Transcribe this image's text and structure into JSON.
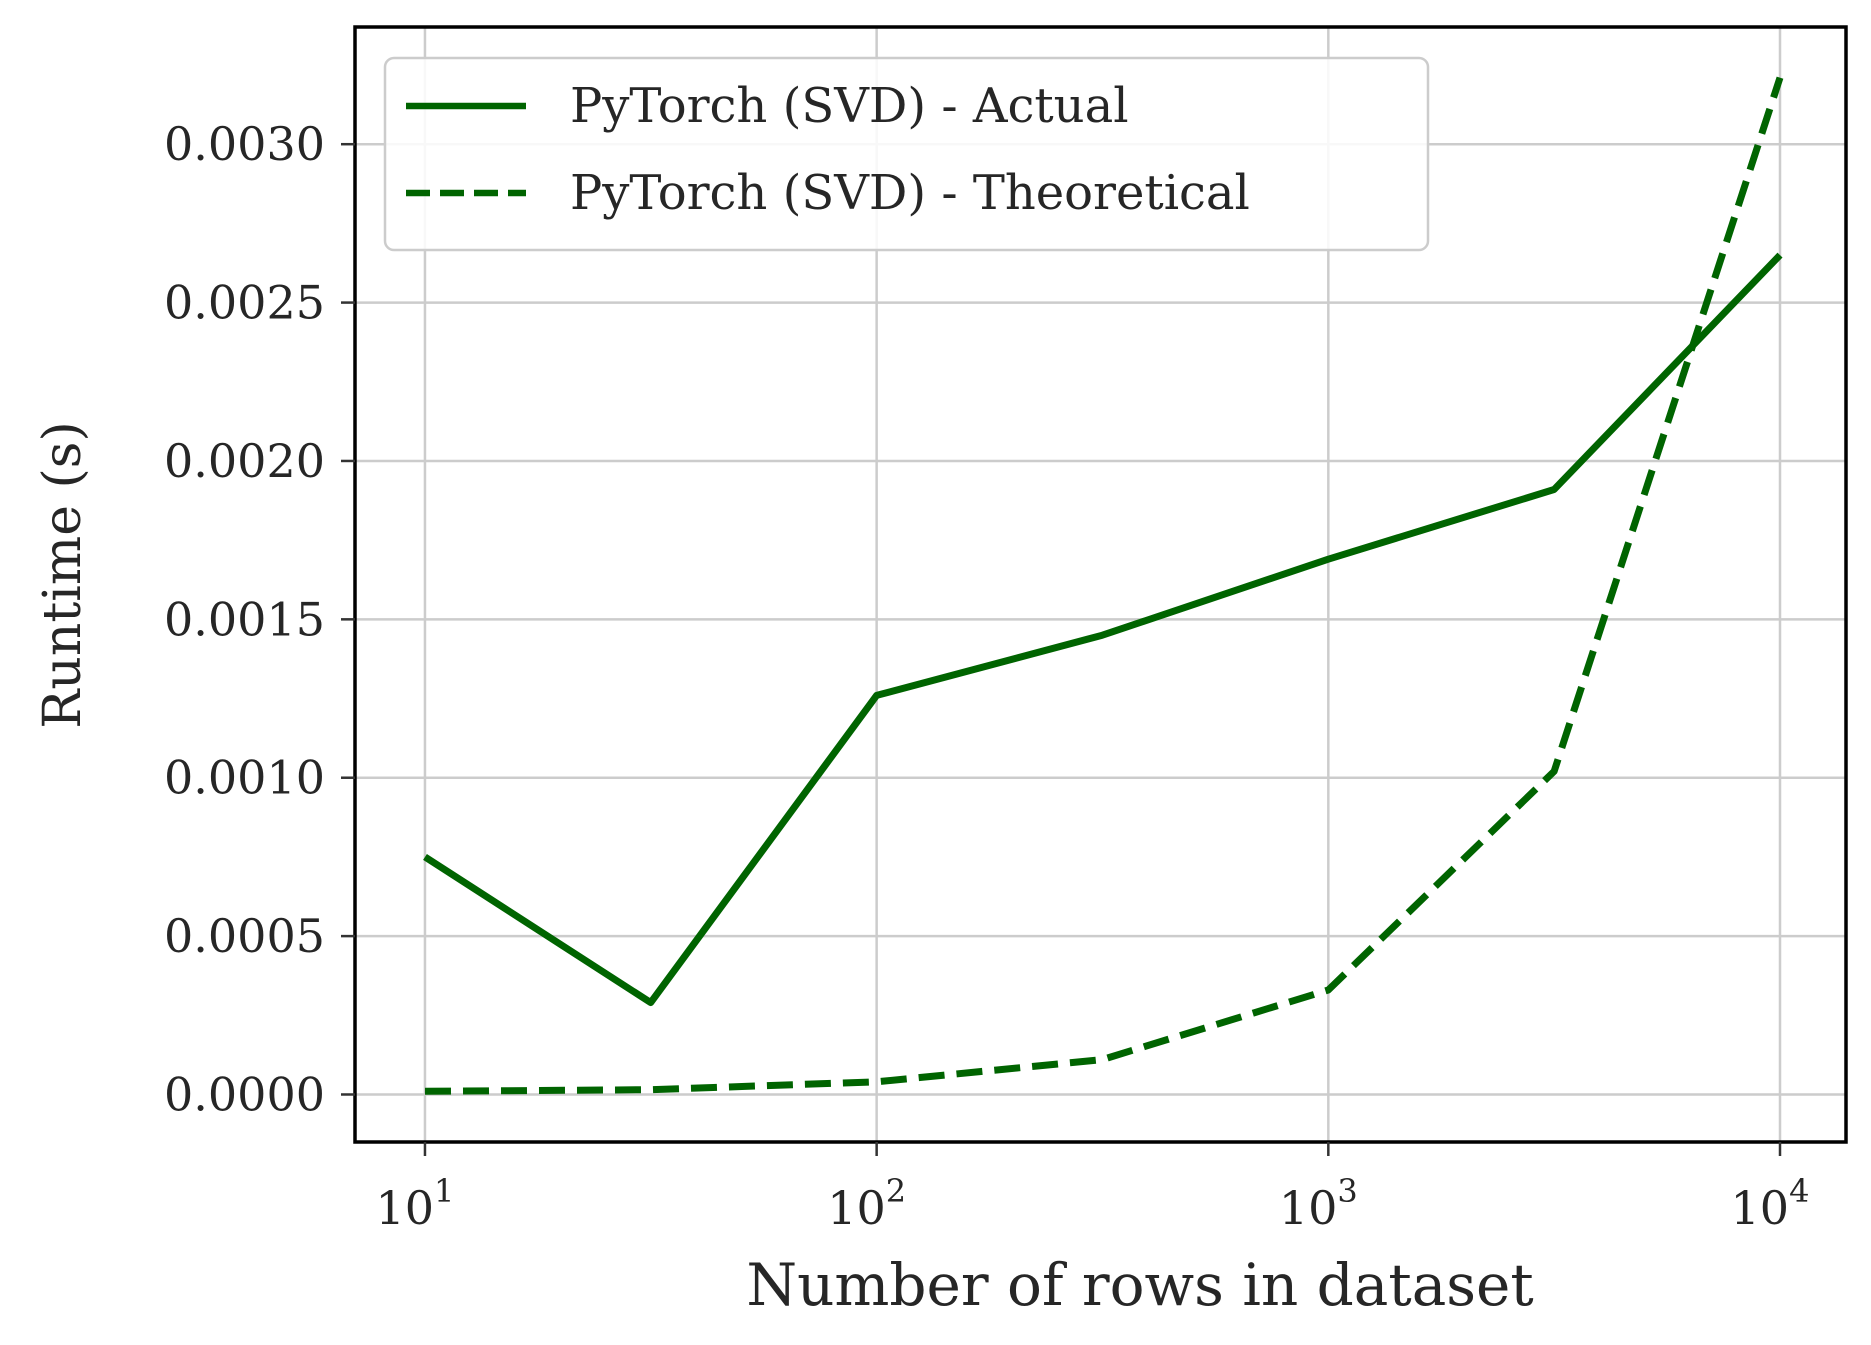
{
  "chart_data": {
    "type": "line",
    "xlabel": "Number of rows in dataset",
    "ylabel": "Runtime (s)",
    "xscale": "log",
    "xlim": [
      7,
      14000
    ],
    "ylim": [
      -0.00015,
      0.00337
    ],
    "grid": true,
    "legend_position": "top-left",
    "x_ticks": [
      10,
      100,
      1000,
      10000
    ],
    "x_tick_labels": [
      {
        "base": "10",
        "exp": "1"
      },
      {
        "base": "10",
        "exp": "2"
      },
      {
        "base": "10",
        "exp": "3"
      },
      {
        "base": "10",
        "exp": "4"
      }
    ],
    "y_ticks": [
      0.0,
      0.0005,
      0.001,
      0.0015,
      0.002,
      0.0025,
      0.003
    ],
    "y_tick_labels": [
      "0.0000",
      "0.0005",
      "0.0010",
      "0.0015",
      "0.0020",
      "0.0025",
      "0.0030"
    ],
    "series": [
      {
        "name": "PyTorch (SVD) - Actual",
        "style": "solid",
        "color": "#006400",
        "x": [
          10,
          31.6,
          100,
          316,
          1000,
          3162,
          10000
        ],
        "y": [
          0.00075,
          0.00029,
          0.00126,
          0.00145,
          0.00169,
          0.00191,
          0.00265
        ]
      },
      {
        "name": "PyTorch (SVD) - Theoretical",
        "style": "dashed",
        "color": "#006400",
        "x": [
          10,
          31.6,
          100,
          316,
          1000,
          3162,
          10000
        ],
        "y": [
          1e-05,
          1.5e-05,
          4e-05,
          0.00011,
          0.00033,
          0.00102,
          0.00321
        ]
      }
    ]
  }
}
